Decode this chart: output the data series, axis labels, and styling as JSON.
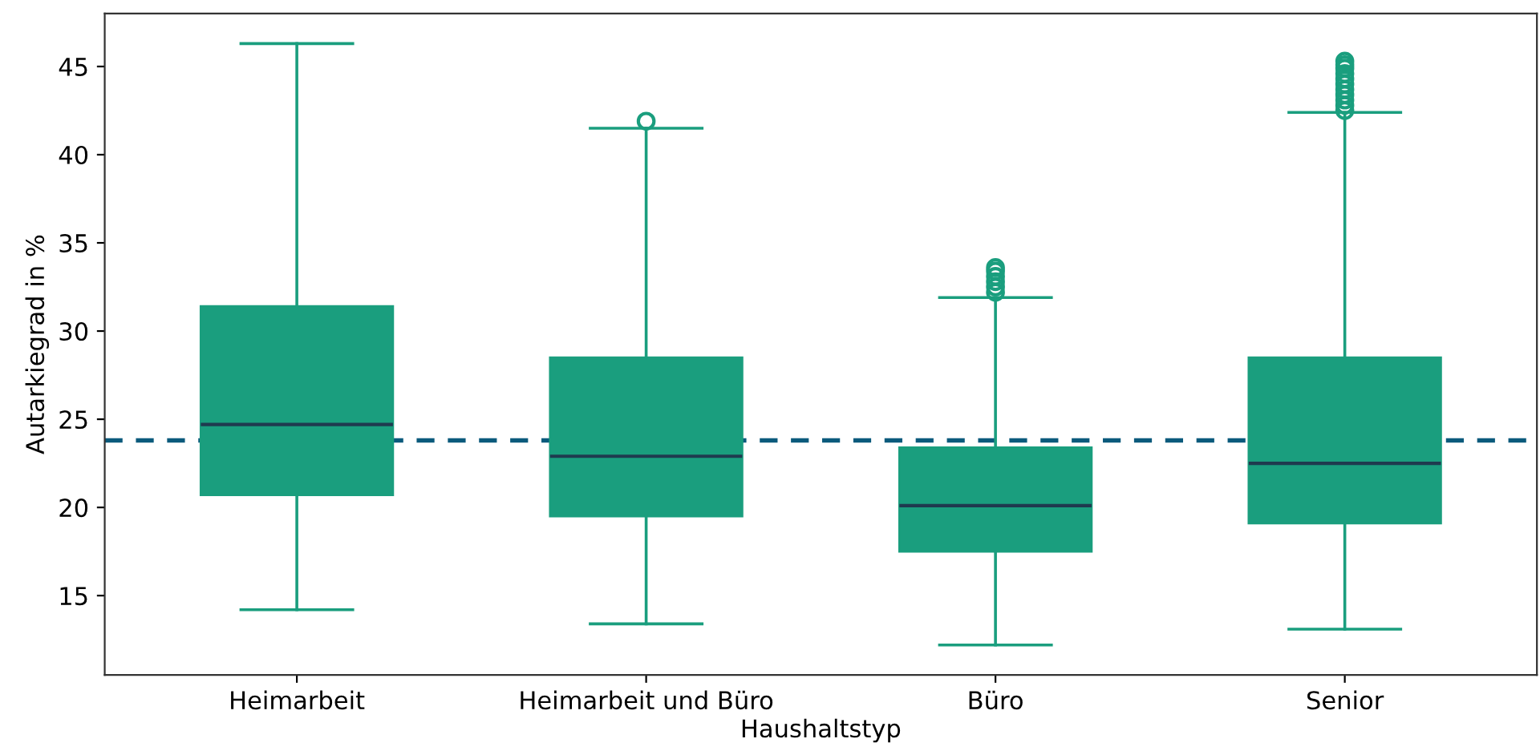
{
  "chart_data": {
    "type": "box",
    "xlabel": "Haushaltstyp",
    "ylabel": "Autarkiegrad in %",
    "categories": [
      "Heimarbeit",
      "Heimarbeit und Büro",
      "Büro",
      "Senior"
    ],
    "boxes": [
      {
        "low": 14.2,
        "q1": 20.7,
        "median": 24.7,
        "q3": 31.4,
        "high": 46.3
      },
      {
        "low": 13.4,
        "q1": 19.5,
        "median": 22.9,
        "q3": 28.5,
        "high": 41.5,
        "outliers": [
          41.9
        ]
      },
      {
        "low": 12.2,
        "q1": 17.5,
        "median": 20.1,
        "q3": 23.4,
        "high": 31.9,
        "outliers": [
          32.2,
          32.5,
          32.8,
          33.1,
          33.4,
          33.6
        ]
      },
      {
        "low": 13.1,
        "q1": 19.1,
        "median": 22.5,
        "q3": 28.5,
        "high": 42.4,
        "outliers": [
          42.5,
          42.8,
          43.1,
          43.4,
          43.7,
          44.0,
          44.3,
          44.6,
          44.9,
          45.1,
          45.3
        ]
      }
    ],
    "color": "#1a9e7e",
    "ylim": [
      10.5,
      48
    ],
    "yticks": [
      15,
      20,
      25,
      30,
      35,
      40,
      45
    ],
    "ref_lines": [
      {
        "axis": "y",
        "value": 23.8,
        "color": "#0b5a7c",
        "line_style": "dashed"
      }
    ],
    "grid": false
  }
}
